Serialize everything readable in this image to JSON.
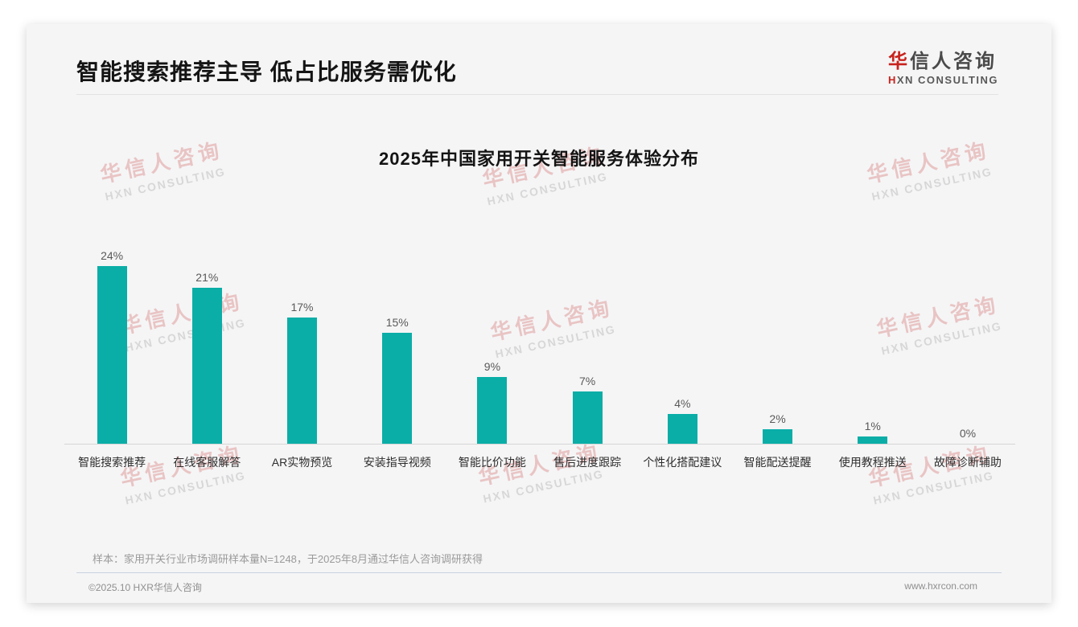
{
  "page": {
    "header": {
      "title": "智能搜索推荐主导 低占比服务需优化"
    },
    "logo": {
      "cn_first": "华",
      "cn_rest": "信人咨询",
      "en_first": "H",
      "en_rest": "XN CONSULTING"
    },
    "watermark": {
      "cn": "华信人咨询",
      "en": "HXN CONSULTING"
    },
    "footnote": "样本：家用开关行业市场调研样本量N=1248，于2025年8月通过华信人咨询调研获得",
    "footer": {
      "copyright": "©2025.10 HXR华信人咨询",
      "website": "www.hxrcon.com"
    }
  },
  "chart_data": {
    "type": "bar",
    "title": "2025年中国家用开关智能服务体验分布",
    "categories": [
      "智能搜索推荐",
      "在线客服解答",
      "AR实物预览",
      "安装指导视频",
      "智能比价功能",
      "售后进度跟踪",
      "个性化搭配建议",
      "智能配送提醒",
      "使用教程推送",
      "故障诊断辅助"
    ],
    "values": [
      24,
      21,
      17,
      15,
      9,
      7,
      4,
      2,
      1,
      0
    ],
    "value_labels": [
      "24%",
      "21%",
      "17%",
      "15%",
      "9%",
      "7%",
      "4%",
      "2%",
      "1%",
      "0%"
    ],
    "bar_color": "#0aaea7",
    "xlabel": "",
    "ylabel": "",
    "ylim": [
      0,
      26
    ],
    "grid": false,
    "legend": "none"
  }
}
